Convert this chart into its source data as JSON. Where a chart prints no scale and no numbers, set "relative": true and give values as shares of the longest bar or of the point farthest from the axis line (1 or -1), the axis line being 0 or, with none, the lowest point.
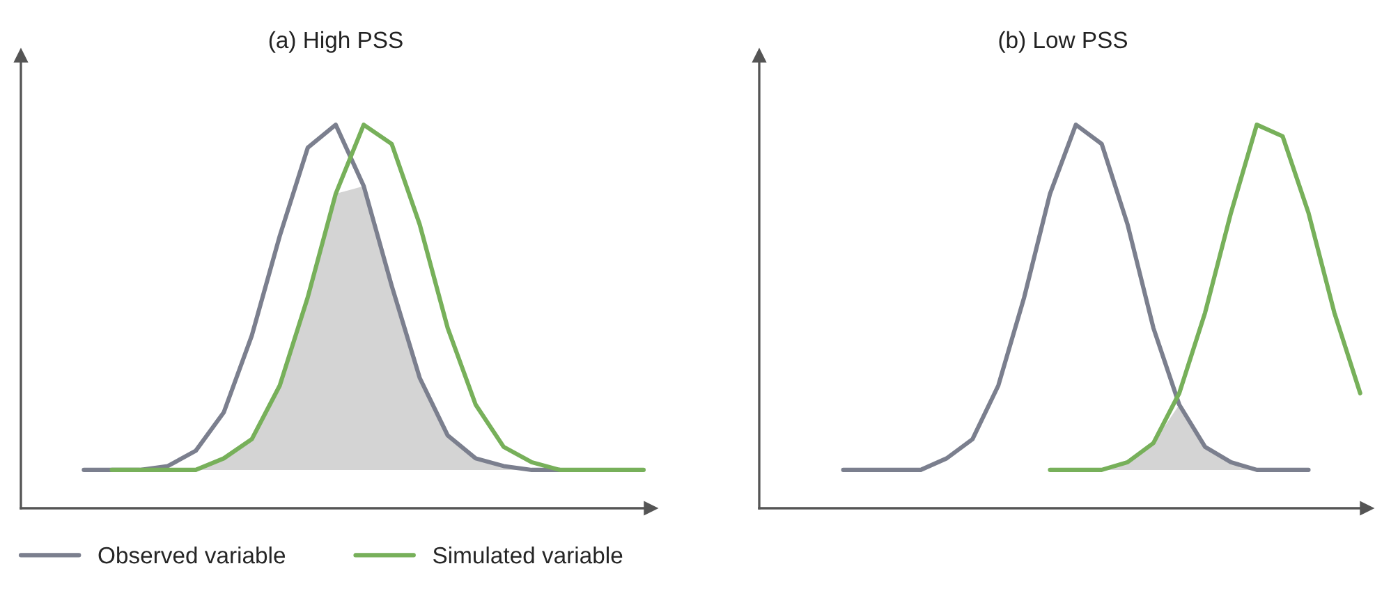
{
  "chart_data": [
    {
      "type": "line",
      "title": "(a) High PSS",
      "relative": true,
      "legend": "bottom left",
      "grid": false,
      "categories": [
        null,
        null,
        null,
        null,
        null,
        null,
        null,
        null,
        null,
        null,
        null,
        null,
        null,
        null,
        null,
        null,
        null,
        null,
        null,
        null,
        null,
        null
      ],
      "series": [
        {
          "type": "area",
          "color": "#d4d4d4",
          "values": [
            null,
            null,
            null,
            null,
            null,
            0.1,
            0.13,
            0.18,
            0.32,
            0.55,
            0.82,
            0.84,
            0.58,
            0.34,
            0.19,
            0.13,
            0.11,
            0.1,
            0.1,
            null,
            null,
            null
          ]
        },
        {
          "name": "Observed variable",
          "color": "#7b7f8e",
          "values": [
            null,
            0.1,
            0.1,
            0.1,
            0.11,
            0.15,
            0.25,
            0.45,
            0.71,
            0.94,
            1.0,
            0.84,
            0.58,
            0.34,
            0.19,
            0.13,
            0.11,
            0.1,
            0.1,
            null,
            null,
            null
          ]
        },
        {
          "name": "Simulated variable",
          "color": "#77b05a",
          "values": [
            null,
            null,
            0.1,
            0.1,
            0.1,
            0.1,
            0.13,
            0.18,
            0.32,
            0.55,
            0.82,
            1.0,
            0.95,
            0.74,
            0.47,
            0.27,
            0.16,
            0.12,
            0.1,
            0.1,
            0.1,
            0.1
          ]
        }
      ]
    },
    {
      "type": "line",
      "title": "(b) Low PSS",
      "relative": true,
      "grid": false,
      "categories": [
        null,
        null,
        null,
        null,
        null,
        null,
        null,
        null,
        null,
        null,
        null,
        null,
        null,
        null,
        null,
        null,
        null,
        null,
        null,
        null,
        null,
        null,
        null
      ],
      "series": [
        {
          "type": "area",
          "color": "#d4d4d4",
          "values": [
            null,
            null,
            null,
            null,
            null,
            null,
            null,
            null,
            null,
            null,
            null,
            null,
            0.1,
            0.12,
            0.17,
            0.27,
            0.16,
            0.12,
            0.1,
            null,
            null,
            null,
            null
          ]
        },
        {
          "color": "#7b7f8e",
          "values": [
            null,
            null,
            0.1,
            0.1,
            0.1,
            0.1,
            0.13,
            0.18,
            0.32,
            0.55,
            0.82,
            1.0,
            0.95,
            0.74,
            0.47,
            0.27,
            0.16,
            0.12,
            0.1,
            0.1,
            0.1,
            null,
            null
          ]
        },
        {
          "color": "#77b05a",
          "values": [
            null,
            null,
            null,
            null,
            null,
            null,
            null,
            null,
            null,
            null,
            0.1,
            0.1,
            0.1,
            0.12,
            0.17,
            0.3,
            0.51,
            0.77,
            1.0,
            0.97,
            0.77,
            0.51,
            0.3
          ]
        }
      ]
    }
  ]
}
